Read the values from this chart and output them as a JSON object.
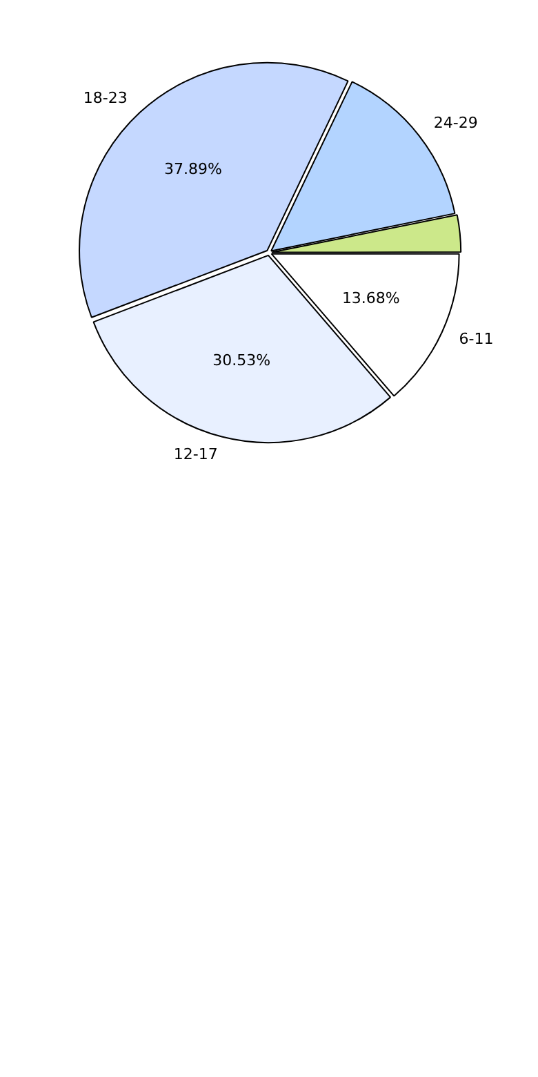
{
  "chart_data": {
    "type": "pie",
    "categories": [
      "6-11",
      "12-17",
      "18-23",
      "24-29",
      null
    ],
    "values": [
      13.68,
      30.53,
      37.89,
      14.7,
      3.2
    ],
    "colors": [
      "#ffffff",
      "#e8f0ff",
      "#c5d8ff",
      "#b3d4ff",
      "#cce88a"
    ],
    "value_labels": [
      "13.68%",
      "30.53%",
      "37.89%",
      null,
      null
    ]
  }
}
